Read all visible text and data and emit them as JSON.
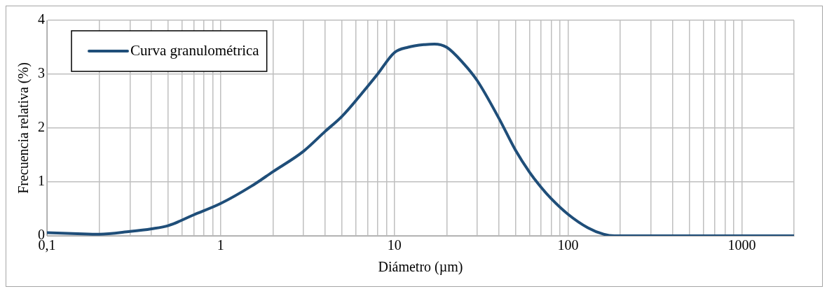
{
  "chart_data": {
    "type": "line",
    "xlabel": "Diámetro (µm)",
    "ylabel": "Frecuencia relativa (%)",
    "log": "x",
    "grid": true,
    "legend": "top left",
    "marker": "none",
    "line_style": "solid",
    "xlim": [
      0.1,
      2000
    ],
    "ylim": [
      0,
      4
    ],
    "yticks": [
      0,
      1,
      2,
      3,
      4
    ],
    "xticks": [
      {
        "value": 0.1,
        "label": "0,1"
      },
      {
        "value": 0.2,
        "label": null
      },
      {
        "value": 0.3,
        "label": null
      },
      {
        "value": 0.4,
        "label": null
      },
      {
        "value": 0.5,
        "label": null
      },
      {
        "value": 0.6,
        "label": null
      },
      {
        "value": 0.7,
        "label": null
      },
      {
        "value": 0.8,
        "label": null
      },
      {
        "value": 0.9,
        "label": null
      },
      1,
      {
        "value": 2,
        "label": null
      },
      {
        "value": 3,
        "label": null
      },
      {
        "value": 4,
        "label": null
      },
      {
        "value": 5,
        "label": null
      },
      {
        "value": 6,
        "label": null
      },
      {
        "value": 7,
        "label": null
      },
      {
        "value": 8,
        "label": null
      },
      {
        "value": 9,
        "label": null
      },
      10,
      {
        "value": 20,
        "label": null
      },
      {
        "value": 30,
        "label": null
      },
      {
        "value": 40,
        "label": null
      },
      {
        "value": 50,
        "label": null
      },
      {
        "value": 60,
        "label": null
      },
      {
        "value": 70,
        "label": null
      },
      {
        "value": 80,
        "label": null
      },
      {
        "value": 90,
        "label": null
      },
      100,
      {
        "value": 200,
        "label": null
      },
      {
        "value": 300,
        "label": null
      },
      {
        "value": 400,
        "label": null
      },
      {
        "value": 500,
        "label": null
      },
      {
        "value": 600,
        "label": null
      },
      {
        "value": 700,
        "label": null
      },
      {
        "value": 800,
        "label": null
      },
      {
        "value": 900,
        "label": null
      },
      1000,
      {
        "value": 2000,
        "label": null
      }
    ],
    "x": [
      0.1,
      0.15,
      0.2,
      0.3,
      0.4,
      0.5,
      0.7,
      1,
      1.5,
      2,
      3,
      4,
      5,
      7,
      8,
      10,
      12,
      15,
      17,
      20,
      25,
      30,
      40,
      50,
      60,
      70,
      80,
      100,
      130,
      160,
      185,
      200,
      500,
      1000,
      2000
    ],
    "series": [
      {
        "name": "Curva granulométrica",
        "color": "#1f4e79",
        "values": [
          0.06,
          0.04,
          0.03,
          0.08,
          0.13,
          0.19,
          0.39,
          0.6,
          0.92,
          1.19,
          1.57,
          1.94,
          2.22,
          2.77,
          3.0,
          3.4,
          3.5,
          3.55,
          3.56,
          3.5,
          3.2,
          2.88,
          2.18,
          1.58,
          1.18,
          0.9,
          0.69,
          0.4,
          0.15,
          0.03,
          0,
          0,
          0,
          0,
          0
        ]
      }
    ]
  }
}
